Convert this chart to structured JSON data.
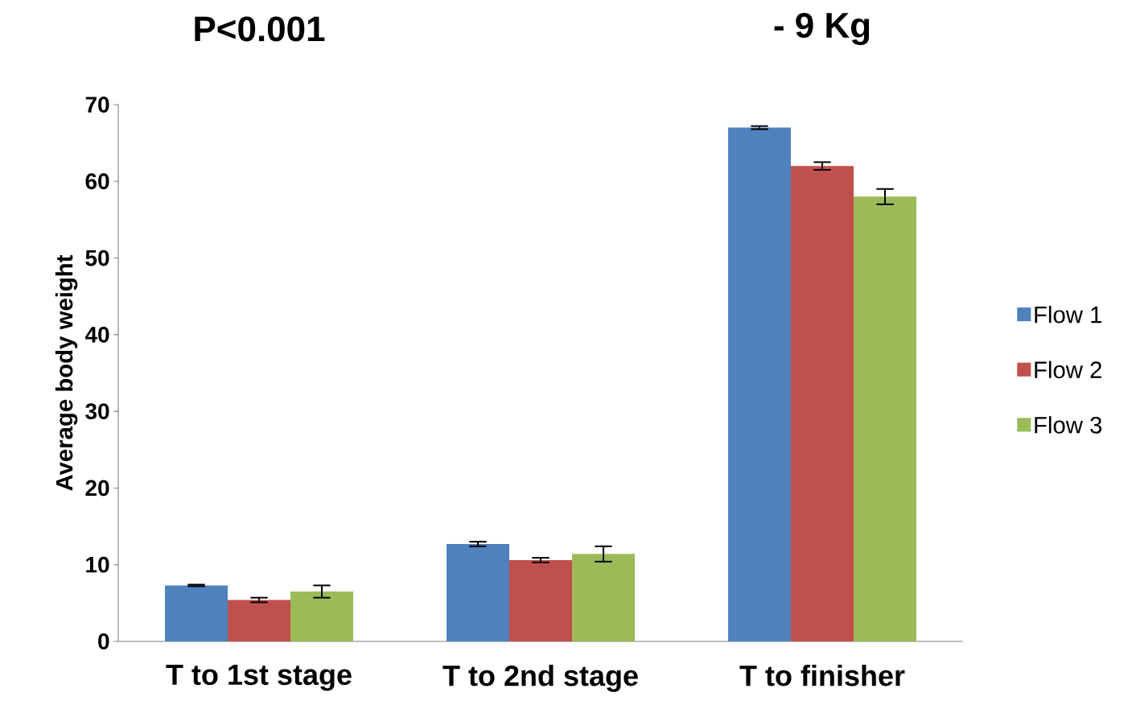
{
  "chart_data": {
    "type": "bar",
    "ylabel": "Average body weight",
    "categories": [
      "T to 1st stage",
      "T to 2nd stage",
      "T to finisher"
    ],
    "series": [
      {
        "name": "Flow 1",
        "color": "#4f81bd",
        "values": [
          7.3,
          12.7,
          67
        ],
        "errors": [
          0.1,
          0.3,
          0.2
        ]
      },
      {
        "name": "Flow 2",
        "color": "#c0504d",
        "values": [
          5.4,
          10.6,
          62
        ],
        "errors": [
          0.3,
          0.3,
          0.5
        ]
      },
      {
        "name": "Flow 3",
        "color": "#9bbb59",
        "values": [
          6.5,
          11.4,
          58
        ],
        "errors": [
          0.8,
          1.0,
          1.0
        ]
      }
    ],
    "ylim": [
      0,
      70
    ],
    "yticks": [
      0,
      10,
      20,
      30,
      40,
      50,
      60,
      70
    ],
    "grid": false,
    "legend": "right",
    "annotations": [
      "P<0.001",
      "- 9 Kg"
    ]
  }
}
